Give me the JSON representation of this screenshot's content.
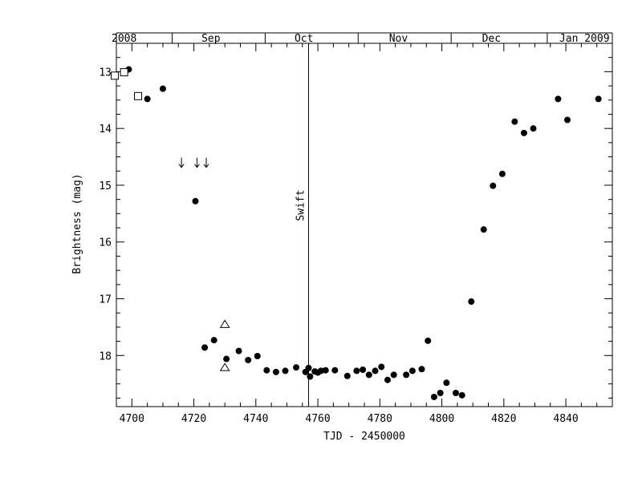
{
  "chart_data": {
    "type": "scatter",
    "xlabel": "TJD - 2450000",
    "ylabel": "Brightness (mag)",
    "xlim": [
      4695,
      4855
    ],
    "ylim": [
      18.9,
      12.5
    ],
    "y_inverted": true,
    "x_ticks": [
      "4700",
      "4720",
      "4740",
      "4760",
      "4780",
      "4800",
      "4820",
      "4840"
    ],
    "y_ticks": [
      "13",
      "14",
      "15",
      "16",
      "17",
      "18"
    ],
    "top_axis_labels": [
      {
        "text": "2008",
        "x": 4697.5
      },
      {
        "text": "Sep",
        "x": 4725.5
      },
      {
        "text": "Oct",
        "x": 4755.5
      },
      {
        "text": "Nov",
        "x": 4786
      },
      {
        "text": "Dec",
        "x": 4816
      },
      {
        "text": "Jan 2009",
        "x": 4846
      }
    ],
    "top_axis_month_ticks": [
      4713,
      4743,
      4773,
      4803,
      4834
    ],
    "annotation": {
      "text": "Swift",
      "x": 4757
    },
    "series": [
      {
        "marker": "filled-circle",
        "points": [
          [
            4699,
            12.96
          ],
          [
            4705,
            13.48
          ],
          [
            4710,
            13.3
          ],
          [
            4720.5,
            15.28
          ],
          [
            4723.5,
            17.86
          ],
          [
            4726.5,
            17.73
          ],
          [
            4730.5,
            18.06
          ],
          [
            4734.5,
            17.92
          ],
          [
            4737.5,
            18.08
          ],
          [
            4740.5,
            18.01
          ],
          [
            4743.5,
            18.26
          ],
          [
            4746.5,
            18.29
          ],
          [
            4749.5,
            18.27
          ],
          [
            4753,
            18.21
          ],
          [
            4756,
            18.29
          ],
          [
            4757,
            18.22
          ],
          [
            4757.5,
            18.37
          ],
          [
            4759,
            18.28
          ],
          [
            4760,
            18.3
          ],
          [
            4761,
            18.27
          ],
          [
            4762.5,
            18.26
          ],
          [
            4765.5,
            18.26
          ],
          [
            4769.5,
            18.36
          ],
          [
            4772.5,
            18.27
          ],
          [
            4774.5,
            18.25
          ],
          [
            4776.5,
            18.34
          ],
          [
            4778.5,
            18.27
          ],
          [
            4780.5,
            18.2
          ],
          [
            4782.5,
            18.43
          ],
          [
            4784.5,
            18.34
          ],
          [
            4788.5,
            18.34
          ],
          [
            4790.5,
            18.27
          ],
          [
            4793.5,
            18.24
          ],
          [
            4795.5,
            17.74
          ],
          [
            4797.5,
            18.73
          ],
          [
            4799.5,
            18.66
          ],
          [
            4801.5,
            18.48
          ],
          [
            4804.5,
            18.66
          ],
          [
            4806.5,
            18.7
          ],
          [
            4809.5,
            17.05
          ],
          [
            4813.5,
            15.78
          ],
          [
            4816.5,
            15.01
          ],
          [
            4819.5,
            14.8
          ],
          [
            4823.5,
            13.88
          ],
          [
            4826.5,
            14.08
          ],
          [
            4829.5,
            14.0
          ],
          [
            4837.5,
            13.48
          ],
          [
            4840.5,
            13.85
          ],
          [
            4850.5,
            13.48
          ]
        ]
      },
      {
        "marker": "open-square",
        "points": [
          [
            4694.5,
            13.07
          ],
          [
            4697.5,
            13.01
          ],
          [
            4702,
            13.43
          ]
        ]
      },
      {
        "marker": "open-triangle",
        "points": [
          [
            4730,
            17.45
          ],
          [
            4730,
            18.21
          ]
        ]
      },
      {
        "marker": "upper-limit-arrow",
        "points": [
          [
            4716,
            14.6
          ],
          [
            4721,
            14.6
          ],
          [
            4724,
            14.6
          ]
        ]
      }
    ]
  }
}
